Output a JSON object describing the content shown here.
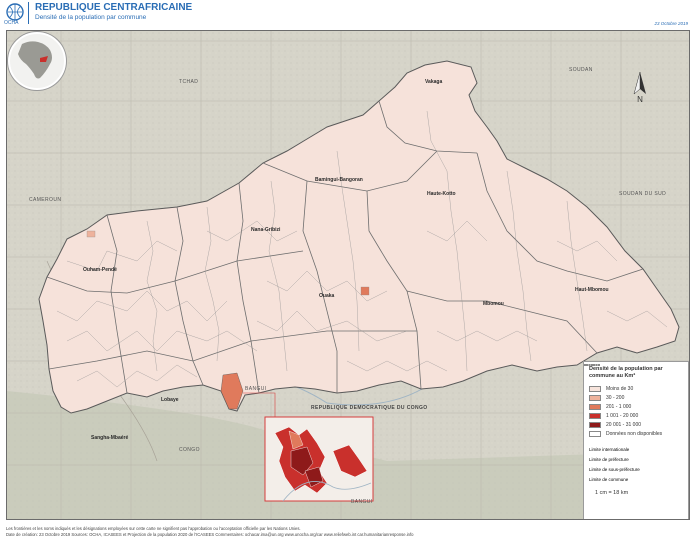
{
  "header": {
    "org": "OCHA",
    "title": "REPUBLIQUE CENTRAFRICAINE",
    "subtitle": "Densité de la population par commune",
    "date": "23 Octobre 2019"
  },
  "countries": {
    "tchad": "TCHAD",
    "soudan": "SOUDAN",
    "soudan_sud": "SOUDAN DU SUD",
    "cameroun": "CAMEROUN",
    "rdc": "REPUBLIQUE DEMOCRATIQUE DU CONGO",
    "congo": "CONGO",
    "bangui": "BANGUI"
  },
  "regions": {
    "bamingui": "Bamingui-Bangoran",
    "vakaga": "Vakaga",
    "haute_kotto": "Haute-Kotto",
    "haut_mbomou": "Haut-Mbomou",
    "mbomou": "Mbomou",
    "ouaka": "Ouaka",
    "nana_gribizi": "Nana-Gribizi",
    "ouham_pende": "Ouham-Pendé",
    "lobaye": "Lobaye",
    "sangha": "Sangha-Mbaéré",
    "bangui_city": "BANGUI"
  },
  "legend": {
    "title": "Densité de la population par commune au Km²",
    "classes": [
      {
        "label": "Moins de 30",
        "color": "#f7e4dc"
      },
      {
        "label": "30 - 200",
        "color": "#eeb29c"
      },
      {
        "label": "201 - 1 000",
        "color": "#e07a5c"
      },
      {
        "label": "1 001 - 20 000",
        "color": "#c9302c"
      },
      {
        "label": "20 001 - 31 000",
        "color": "#8e1a1a"
      },
      {
        "label": "Données non disponibles",
        "color": "#ffffff"
      }
    ],
    "lines": [
      {
        "label": "Limite internationale"
      },
      {
        "label": "Limite de préfecture"
      },
      {
        "label": "Limite de sous-préfecture"
      },
      {
        "label": "Limite de commune"
      }
    ],
    "scale": "1 cm = 18 km"
  },
  "north": "N",
  "footer": {
    "line1": "Les frontières et les noms indiqués et les désignations employées sur cette carte ne signifient pas l'approbation ou l'acceptation officielle par les Nations Unies.",
    "line2": "Date de création: 23 Octobre 2019    Sources: OCHA, ICASEES et Projection de la population 2020 de l'ICASEES    Commentaires: ochacar.ima@un.org    www.unocha.org/car    www.reliefweb.int    car.humanitarianresponse.info"
  }
}
